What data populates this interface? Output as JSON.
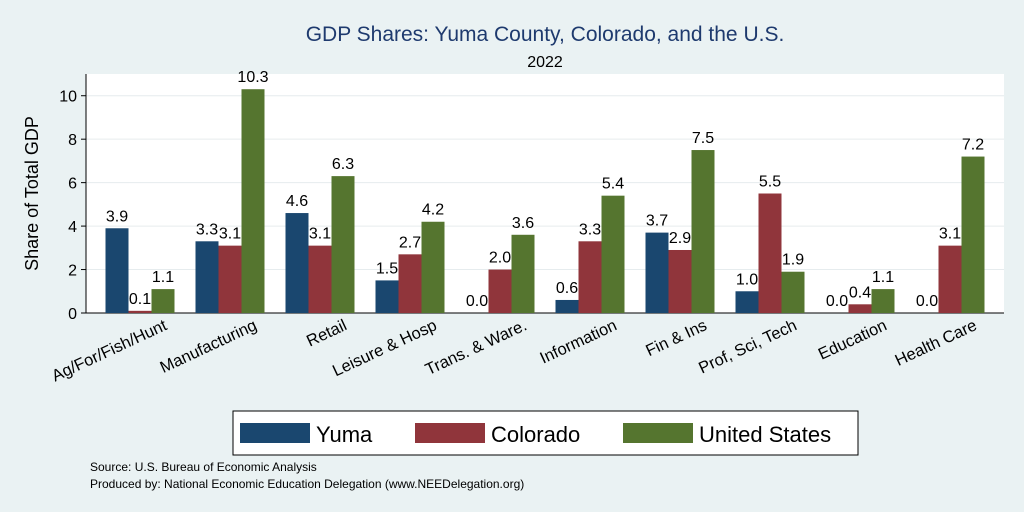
{
  "chart_data": {
    "type": "bar",
    "title": "GDP Shares: Yuma County, Colorado, and the U.S.",
    "subtitle": "2022",
    "xlabel": "",
    "ylabel": "Share of Total GDP",
    "ylim": [
      0,
      11
    ],
    "yticks": [
      0,
      2,
      4,
      6,
      8,
      10
    ],
    "grid": true,
    "legend_position": "bottom",
    "categories": [
      "Ag/For/Fish/Hunt",
      "Manufacturing",
      "Retail",
      "Leisure & Hosp",
      "Trans. & Ware.",
      "Information",
      "Fin & Ins",
      "Prof, Sci, Tech",
      "Education",
      "Health Care"
    ],
    "series": [
      {
        "name": "Yuma",
        "color": "#1a476f",
        "values": [
          3.9,
          3.3,
          4.6,
          1.5,
          0.0,
          0.6,
          3.7,
          1.0,
          0.0,
          0.0
        ],
        "labels": [
          "3.9",
          "3.3",
          "4.6",
          "1.5",
          "0.0",
          "0.6",
          "3.7",
          "1.0",
          "0.0",
          "0.0"
        ]
      },
      {
        "name": "Colorado",
        "color": "#90353b",
        "values": [
          0.1,
          3.1,
          3.1,
          2.7,
          2.0,
          3.3,
          2.9,
          5.5,
          0.4,
          3.1
        ],
        "labels": [
          "0.1",
          "3.1",
          "3.1",
          "2.7",
          "2.0",
          "3.3",
          "2.9",
          "5.5",
          "0.4",
          "3.1"
        ]
      },
      {
        "name": "United States",
        "color": "#55752f",
        "values": [
          1.1,
          10.3,
          6.3,
          4.2,
          3.6,
          5.4,
          7.5,
          1.9,
          1.1,
          7.2
        ],
        "labels": [
          "1.1",
          "10.3",
          "6.3",
          "4.2",
          "3.6",
          "5.4",
          "7.5",
          "1.9",
          "1.1",
          "7.2"
        ]
      }
    ],
    "notes": [
      "Source: U.S. Bureau of Economic Analysis",
      "Produced by: National Economic Education Delegation (www.NEEDelegation.org)"
    ]
  }
}
